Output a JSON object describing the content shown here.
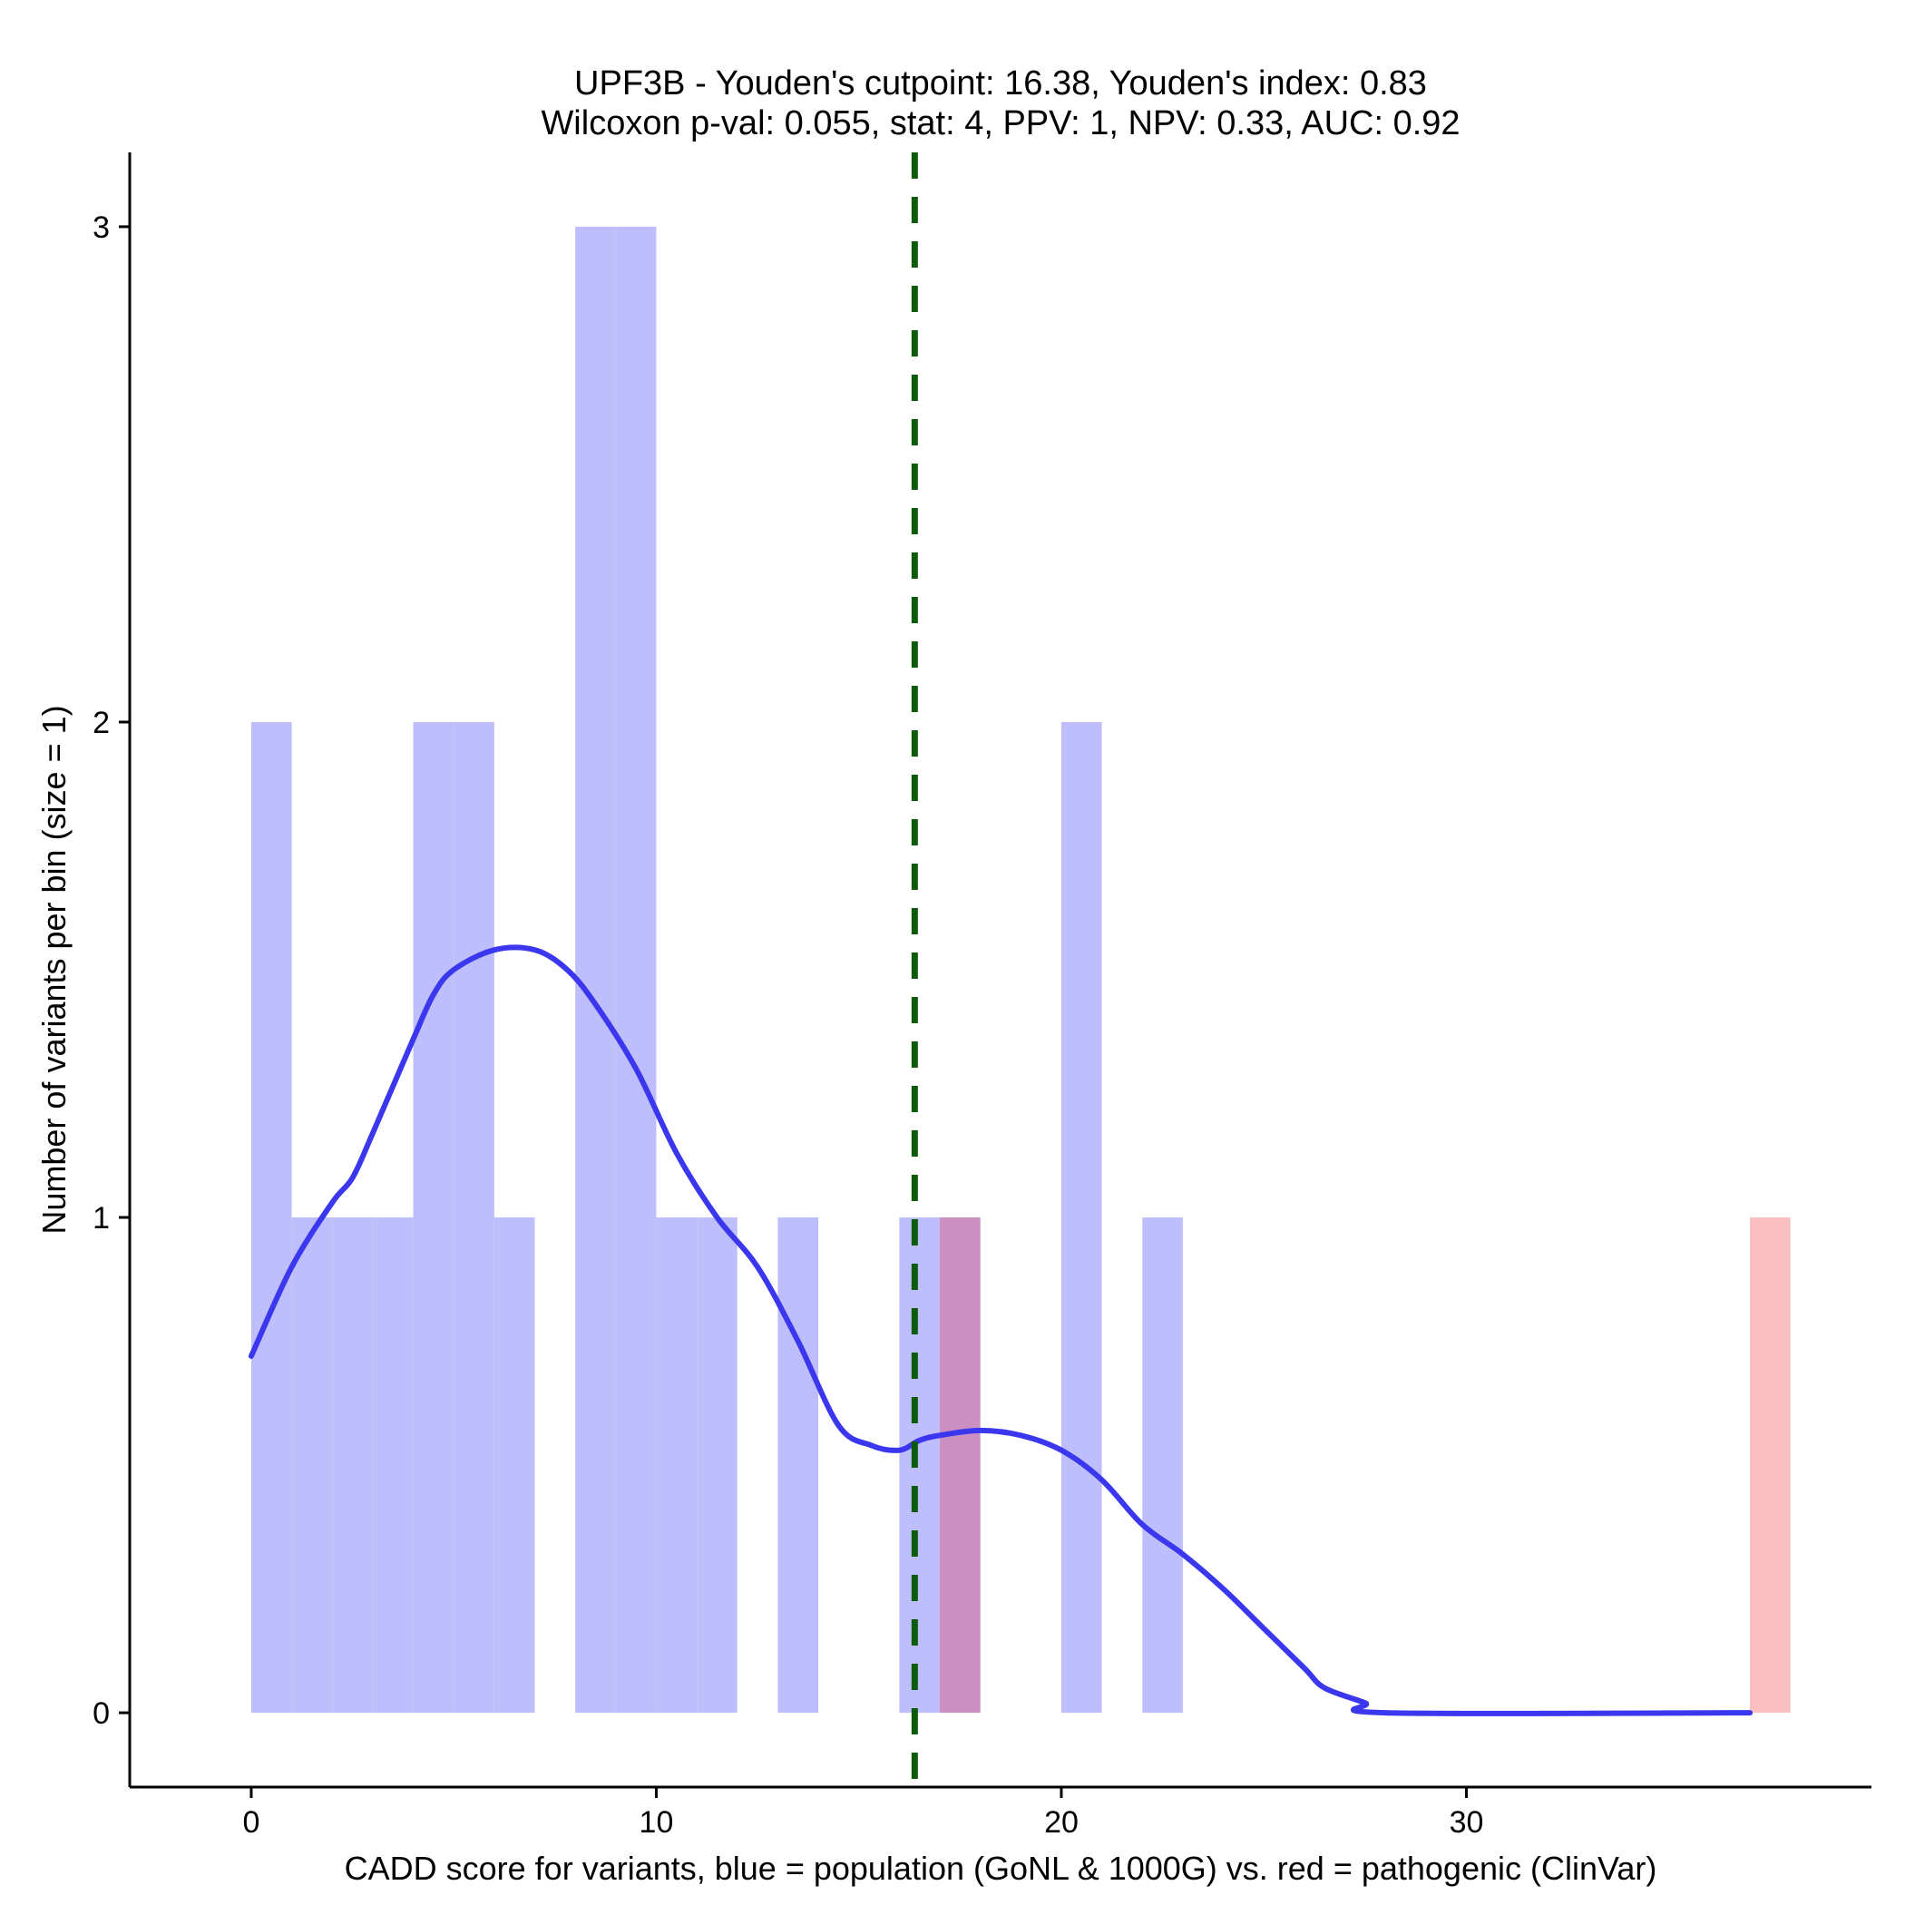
{
  "chart_data": {
    "type": "bar",
    "title": "UPF3B - Youden's cutpoint: 16.38, Youden's index: 0.83",
    "subtitle": "Wilcoxon p-val: 0.055, stat: 4, PPV: 1, NPV: 0.33, AUC: 0.92",
    "xlabel": "CADD score for variants, blue = population (GoNL & 1000G) vs. red = pathogenic (ClinVar)",
    "ylabel": "Number of variants per bin (size = 1)",
    "xlim": [
      -3,
      40
    ],
    "ylim": [
      -0.15,
      3.15
    ],
    "xticks": [
      0,
      10,
      20,
      30
    ],
    "yticks": [
      0,
      1,
      2,
      3
    ],
    "bin_size": 1,
    "cutpoint": 16.38,
    "series": [
      {
        "name": "population (GoNL & 1000G)",
        "color": "#bfbefc",
        "bins": [
          {
            "start": 0,
            "count": 2
          },
          {
            "start": 1,
            "count": 1
          },
          {
            "start": 2,
            "count": 1
          },
          {
            "start": 3,
            "count": 1
          },
          {
            "start": 4,
            "count": 2
          },
          {
            "start": 5,
            "count": 2
          },
          {
            "start": 6,
            "count": 1
          },
          {
            "start": 8,
            "count": 3
          },
          {
            "start": 9,
            "count": 3
          },
          {
            "start": 10,
            "count": 1
          },
          {
            "start": 11,
            "count": 1
          },
          {
            "start": 13,
            "count": 1
          },
          {
            "start": 16,
            "count": 1
          },
          {
            "start": 17,
            "count": 1
          },
          {
            "start": 20,
            "count": 2
          },
          {
            "start": 22,
            "count": 1
          }
        ]
      },
      {
        "name": "pathogenic (ClinVar)",
        "color": "#fcbfc1",
        "bins": [
          {
            "start": 17,
            "count": 1
          },
          {
            "start": 37,
            "count": 1
          }
        ]
      }
    ],
    "overlap_color": "#cc8fc1",
    "density": {
      "name": "population density",
      "color": "#3a37ee",
      "points": [
        [
          0,
          0.72
        ],
        [
          1,
          0.9
        ],
        [
          2,
          1.03
        ],
        [
          2.5,
          1.08
        ],
        [
          3,
          1.17
        ],
        [
          4,
          1.36
        ],
        [
          4.5,
          1.45
        ],
        [
          5,
          1.5
        ],
        [
          6,
          1.54
        ],
        [
          7,
          1.54
        ],
        [
          7.8,
          1.5
        ],
        [
          8.5,
          1.43
        ],
        [
          9.5,
          1.3
        ],
        [
          10.5,
          1.13
        ],
        [
          11.5,
          1.0
        ],
        [
          12.5,
          0.9
        ],
        [
          13.5,
          0.75
        ],
        [
          14.5,
          0.58
        ],
        [
          15.3,
          0.54
        ],
        [
          16,
          0.53
        ],
        [
          16.5,
          0.55
        ],
        [
          17,
          0.56
        ],
        [
          18,
          0.57
        ],
        [
          19,
          0.56
        ],
        [
          20,
          0.53
        ],
        [
          21,
          0.47
        ],
        [
          22,
          0.38
        ],
        [
          23,
          0.32
        ],
        [
          24,
          0.25
        ],
        [
          25,
          0.17
        ],
        [
          26,
          0.09
        ],
        [
          26.5,
          0.05
        ],
        [
          27.5,
          0.02
        ],
        [
          28,
          0.0
        ],
        [
          37,
          0.0
        ]
      ]
    }
  }
}
